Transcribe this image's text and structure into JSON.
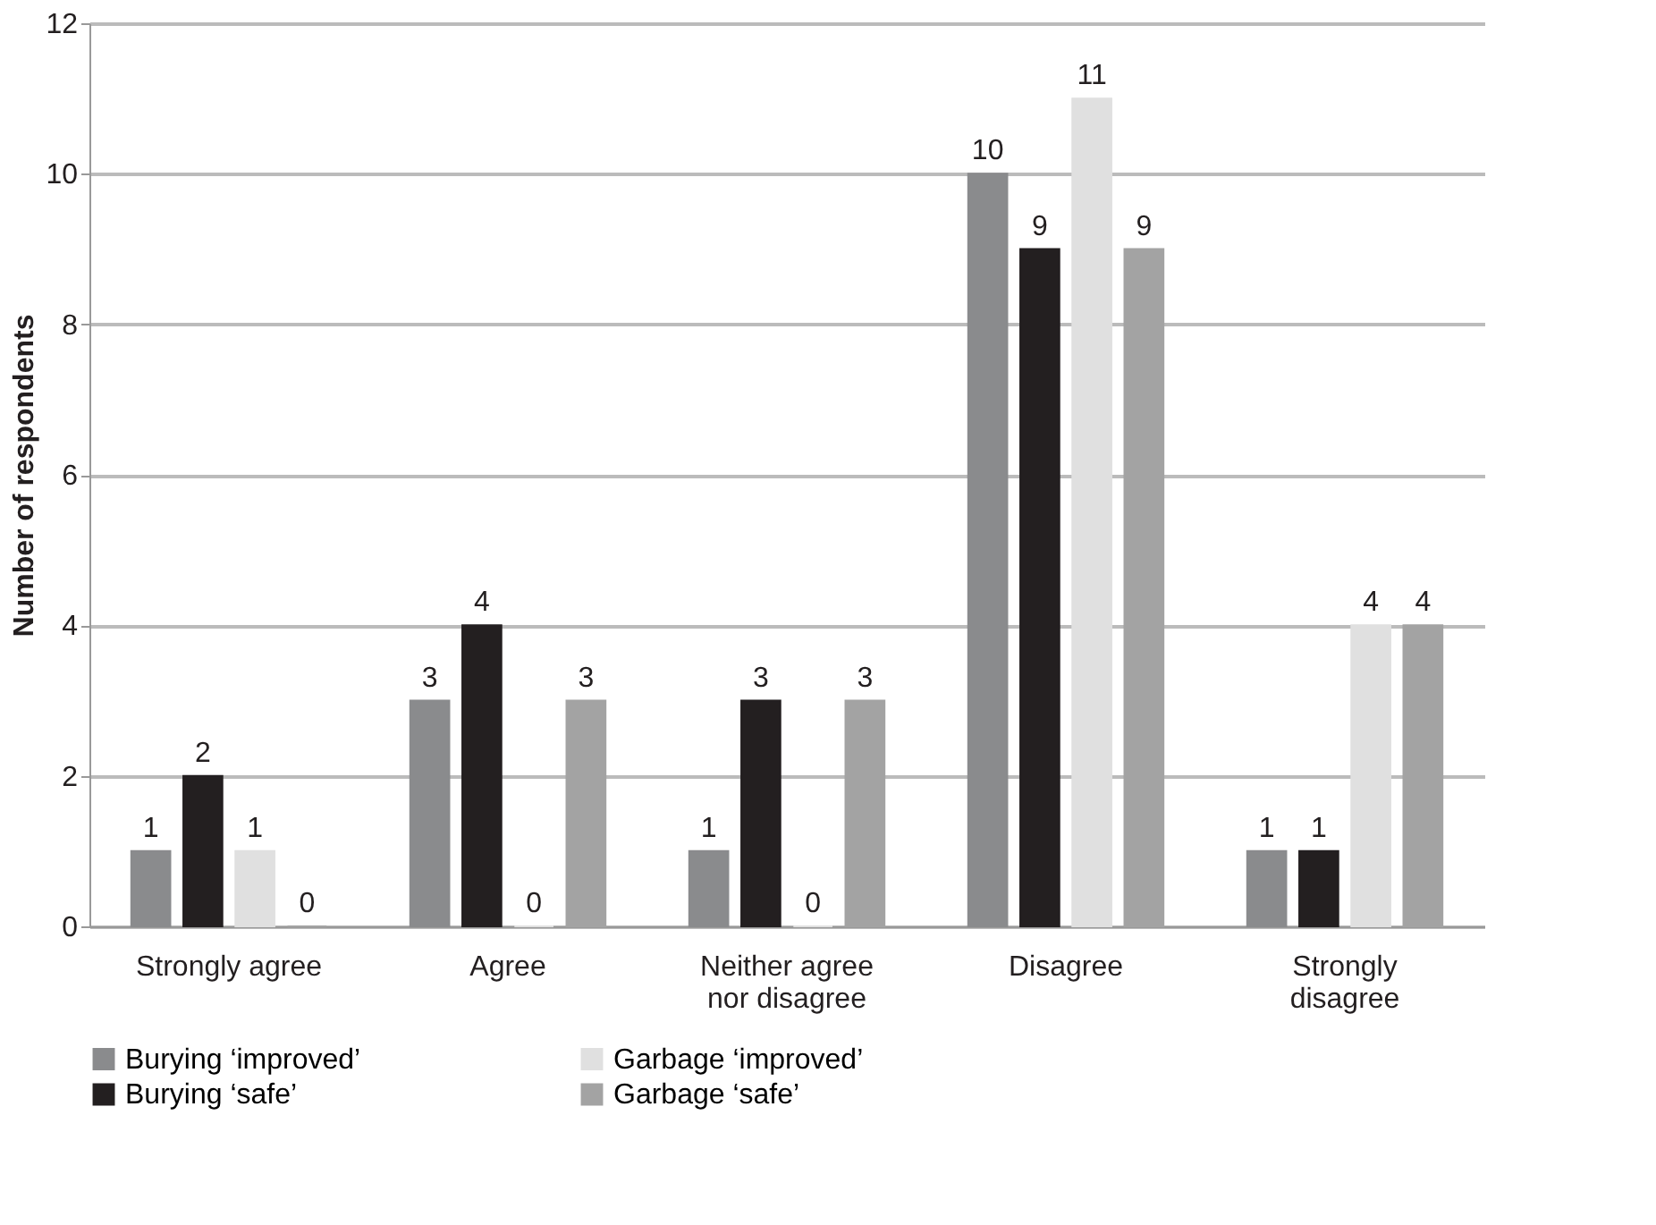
{
  "chart_data": {
    "type": "bar",
    "ylabel": "Number of respondents",
    "categories": [
      "Strongly agree",
      "Agree",
      "Neither agree nor disagree",
      "Disagree",
      "Strongly disagree"
    ],
    "series": [
      {
        "name": "Burying ‘improved’",
        "color": "#8a8b8d",
        "values": [
          1,
          3,
          1,
          10,
          1
        ]
      },
      {
        "name": "Burying ‘safe’",
        "color": "#231f20",
        "values": [
          2,
          4,
          3,
          9,
          1
        ]
      },
      {
        "name": "Garbage ‘improved’",
        "color": "#e0e0e0",
        "values": [
          1,
          0,
          0,
          11,
          4
        ]
      },
      {
        "name": "Garbage ‘safe’",
        "color": "#a3a3a3",
        "values": [
          0,
          3,
          3,
          9,
          4
        ]
      }
    ],
    "ylim": [
      0,
      12
    ],
    "yticks": [
      0,
      2,
      4,
      6,
      8,
      10,
      12
    ],
    "grid": "y",
    "legend": "bottom",
    "data_labels": true
  }
}
